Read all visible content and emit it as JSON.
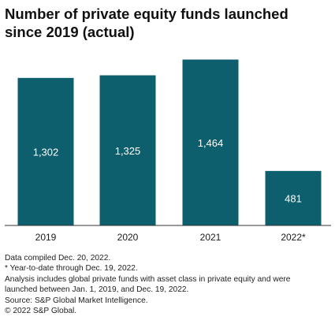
{
  "title": "Number of private equity funds launched since 2019 (actual)",
  "chart_data": {
    "type": "bar",
    "categories": [
      "2019",
      "2020",
      "2021",
      "2022*"
    ],
    "values": [
      1302,
      1325,
      1464,
      481
    ],
    "data_labels": [
      "1,302",
      "1,325",
      "1,464",
      "481"
    ],
    "ylim": [
      0,
      1600
    ],
    "grid": false,
    "bar_color": "#0e5f6e",
    "label_color": "#ffffff"
  },
  "notes": [
    "Data compiled Dec. 20, 2022.",
    "* Year-to-date through Dec. 19, 2022.",
    "Analysis includes global private funds with asset class in private equity and were",
    "launched between Jan. 1, 2019, and Dec. 19, 2022.",
    "Source: S&P Global Market Intelligence.",
    "© 2022 S&P Global."
  ]
}
